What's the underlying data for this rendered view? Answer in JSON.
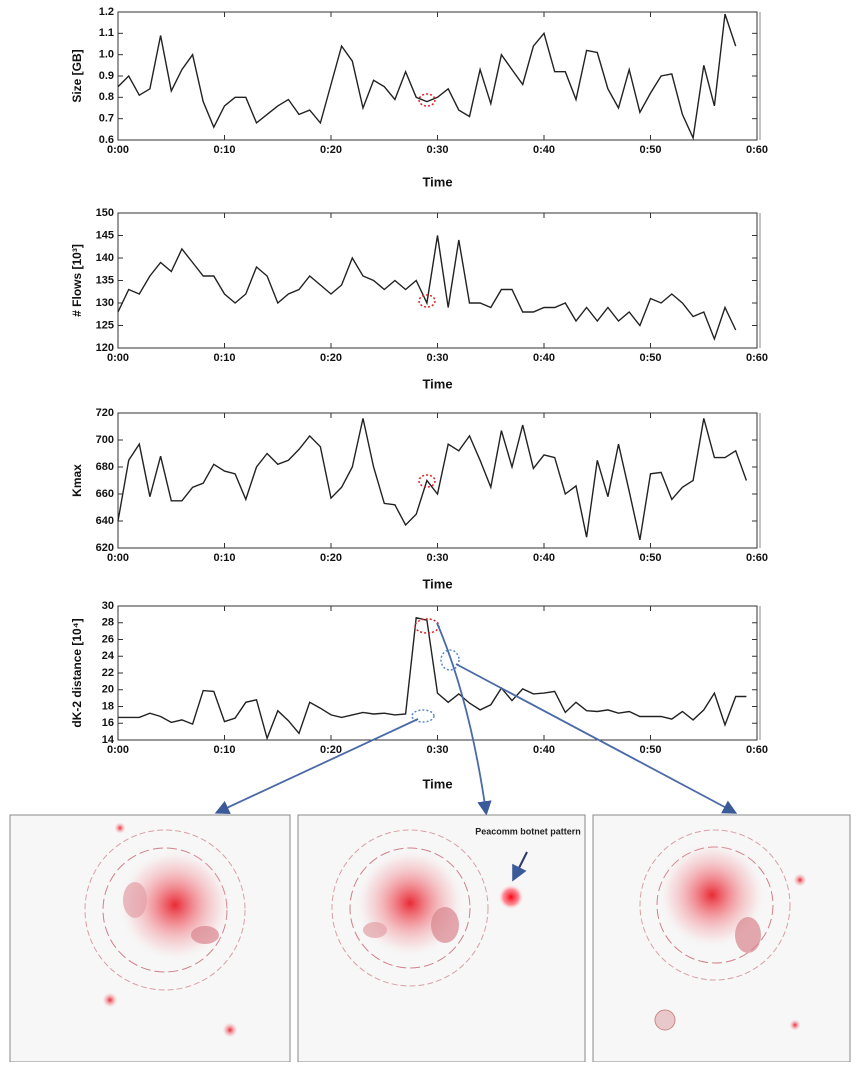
{
  "chart_data": [
    {
      "type": "line",
      "ylabel": "Size [GB]",
      "xlabel": "Time",
      "x": [
        0,
        1,
        2,
        3,
        4,
        5,
        6,
        7,
        8,
        9,
        10,
        11,
        12,
        13,
        14,
        15,
        16,
        17,
        18,
        19,
        20,
        21,
        22,
        23,
        24,
        25,
        26,
        27,
        28,
        29,
        30,
        31,
        32,
        33,
        34,
        35,
        36,
        37,
        38,
        39,
        40,
        41,
        42,
        43,
        44,
        45,
        46,
        47,
        48,
        49,
        50,
        51,
        52,
        53,
        54,
        55,
        56,
        57,
        58
      ],
      "series": [
        {
          "name": null,
          "color": "#222222",
          "values": [
            0.85,
            0.9,
            0.81,
            0.84,
            1.09,
            0.83,
            0.93,
            1.0,
            0.78,
            0.66,
            0.76,
            0.8,
            0.8,
            0.68,
            0.72,
            0.76,
            0.79,
            0.72,
            0.74,
            0.68,
            0.86,
            1.04,
            0.97,
            0.75,
            0.88,
            0.85,
            0.79,
            0.92,
            0.8,
            0.78,
            0.8,
            0.84,
            0.74,
            0.71,
            0.93,
            0.77,
            1.0,
            0.93,
            0.86,
            1.04,
            1.1,
            0.92,
            0.92,
            0.79,
            1.02,
            1.01,
            0.84,
            0.75,
            0.93,
            0.73,
            0.82,
            0.9,
            0.91,
            0.72,
            0.61,
            0.95,
            0.76,
            1.19,
            1.04
          ]
        }
      ],
      "xlim": [
        0,
        60
      ],
      "xticks": [
        {
          "value": 0,
          "label": "0:00"
        },
        {
          "value": 10,
          "label": "0:10"
        },
        {
          "value": 20,
          "label": "0:20"
        },
        {
          "value": 30,
          "label": "0:30"
        },
        {
          "value": 40,
          "label": "0:40"
        },
        {
          "value": 50,
          "label": "0:50"
        },
        {
          "value": 60,
          "label": "0:60"
        }
      ],
      "ylim": [
        0.6,
        1.2
      ],
      "yticks": [
        0.6,
        0.7,
        0.8,
        0.9,
        {
          "value": 1,
          "label": "1.0"
        },
        1.1,
        1.2
      ],
      "grid": false
    },
    {
      "type": "line",
      "ylabel": "# Flows  [10³]",
      "xlabel": "Time",
      "x": [
        0,
        1,
        2,
        3,
        4,
        5,
        6,
        7,
        8,
        9,
        10,
        11,
        12,
        13,
        14,
        15,
        16,
        17,
        18,
        19,
        20,
        21,
        22,
        23,
        24,
        25,
        26,
        27,
        28,
        29,
        30,
        31,
        32,
        33,
        34,
        35,
        36,
        37,
        38,
        39,
        40,
        41,
        42,
        43,
        44,
        45,
        46,
        47,
        48,
        49,
        50,
        51,
        52,
        53,
        54,
        55,
        56,
        57,
        58
      ],
      "series": [
        {
          "name": null,
          "color": "#222222",
          "values": [
            128,
            133,
            132,
            136,
            139,
            137,
            142,
            139,
            136,
            136,
            132,
            130,
            132,
            138,
            136,
            130,
            132,
            133,
            136,
            134,
            132,
            134,
            140,
            136,
            135,
            133,
            135,
            133,
            135,
            130,
            145,
            129,
            144,
            130,
            130,
            129,
            133,
            133,
            128,
            128,
            129,
            129,
            130,
            126,
            129,
            126,
            129,
            126,
            128,
            125,
            131,
            130,
            132,
            130,
            127,
            128,
            122,
            129,
            124
          ]
        }
      ],
      "xlim": [
        0,
        60
      ],
      "xticks": [
        {
          "value": 0,
          "label": "0:00"
        },
        {
          "value": 10,
          "label": "0:10"
        },
        {
          "value": 20,
          "label": "0:20"
        },
        {
          "value": 30,
          "label": "0:30"
        },
        {
          "value": 40,
          "label": "0:40"
        },
        {
          "value": 50,
          "label": "0:50"
        },
        {
          "value": 60,
          "label": "0:60"
        }
      ],
      "ylim": [
        120,
        150
      ],
      "yticks": [
        120,
        125,
        130,
        135,
        140,
        145,
        150
      ],
      "grid": false
    },
    {
      "type": "line",
      "ylabel": "Kmax",
      "xlabel": "Time",
      "x": [
        0,
        1,
        2,
        3,
        4,
        5,
        6,
        7,
        8,
        9,
        10,
        11,
        12,
        13,
        14,
        15,
        16,
        17,
        18,
        19,
        20,
        21,
        22,
        23,
        24,
        25,
        26,
        27,
        28,
        29,
        30,
        31,
        32,
        33,
        34,
        35,
        36,
        37,
        38,
        39,
        40,
        41,
        42,
        43,
        44,
        45,
        46,
        47,
        48,
        49,
        50,
        51,
        52,
        53,
        54,
        55,
        56,
        57,
        58,
        59
      ],
      "series": [
        {
          "name": null,
          "color": "#222222",
          "values": [
            640,
            685,
            697,
            658,
            688,
            655,
            655,
            665,
            668,
            682,
            677,
            675,
            656,
            680,
            690,
            682,
            685,
            693,
            703,
            695,
            657,
            665,
            680,
            716,
            680,
            653,
            652,
            637,
            645,
            670,
            660,
            697,
            692,
            703,
            685,
            665,
            707,
            680,
            711,
            679,
            689,
            687,
            660,
            666,
            628,
            685,
            658,
            697,
            662,
            626,
            675,
            676,
            656,
            665,
            670,
            716,
            687,
            687,
            692,
            670
          ]
        }
      ],
      "xlim": [
        0,
        60
      ],
      "xticks": [
        {
          "value": 0,
          "label": "0:00"
        },
        {
          "value": 10,
          "label": "0:10"
        },
        {
          "value": 20,
          "label": "0:20"
        },
        {
          "value": 30,
          "label": "0:30"
        },
        {
          "value": 40,
          "label": "0:40"
        },
        {
          "value": 50,
          "label": "0:50"
        },
        {
          "value": 60,
          "label": "0:60"
        }
      ],
      "ylim": [
        620,
        720
      ],
      "yticks": [
        620,
        640,
        660,
        680,
        700,
        720
      ],
      "grid": false
    },
    {
      "type": "line",
      "ylabel": "dK-2 distance  [10⁴]",
      "xlabel": "Time",
      "x": [
        0,
        1,
        2,
        3,
        4,
        5,
        6,
        7,
        8,
        9,
        10,
        11,
        12,
        13,
        14,
        15,
        16,
        17,
        18,
        19,
        20,
        21,
        22,
        23,
        24,
        25,
        26,
        27,
        28,
        29,
        30,
        31,
        32,
        33,
        34,
        35,
        36,
        37,
        38,
        39,
        40,
        41,
        42,
        43,
        44,
        45,
        46,
        47,
        48,
        49,
        50,
        51,
        52,
        53,
        54,
        55,
        56,
        57,
        58,
        59
      ],
      "series": [
        {
          "name": null,
          "color": "#222222",
          "values": [
            16.7,
            16.7,
            16.7,
            17.2,
            16.8,
            16.1,
            16.4,
            15.9,
            19.9,
            19.8,
            16.2,
            16.6,
            18.5,
            18.8,
            14.2,
            17.5,
            16.3,
            14.8,
            18.5,
            17.8,
            17,
            16.7,
            17,
            17.3,
            17.1,
            17.2,
            17,
            17.1,
            28.6,
            28.3,
            19.6,
            18.5,
            19.5,
            18.4,
            17.6,
            18.2,
            20.2,
            18.7,
            20.1,
            19.5,
            19.6,
            19.8,
            17.3,
            18.5,
            17.5,
            17.4,
            17.6,
            17.2,
            17.4,
            16.8,
            16.8,
            16.8,
            16.5,
            17.4,
            16.4,
            17.6,
            19.6,
            15.8,
            19.2,
            19.2
          ]
        }
      ],
      "xlim": [
        0,
        60
      ],
      "xticks": [
        {
          "value": 0,
          "label": "0:00"
        },
        {
          "value": 10,
          "label": "0:10"
        },
        {
          "value": 20,
          "label": "0:20"
        },
        {
          "value": 30,
          "label": "0:30"
        },
        {
          "value": 40,
          "label": "0:40"
        },
        {
          "value": 50,
          "label": "0:50"
        },
        {
          "value": 60,
          "label": "0:60"
        }
      ],
      "ylim": [
        14,
        30
      ],
      "yticks": [
        14,
        16,
        18,
        20,
        22,
        24,
        26,
        28,
        30
      ],
      "grid": false
    }
  ],
  "panels": {
    "annotation": "Peacomm botnet pattern"
  }
}
